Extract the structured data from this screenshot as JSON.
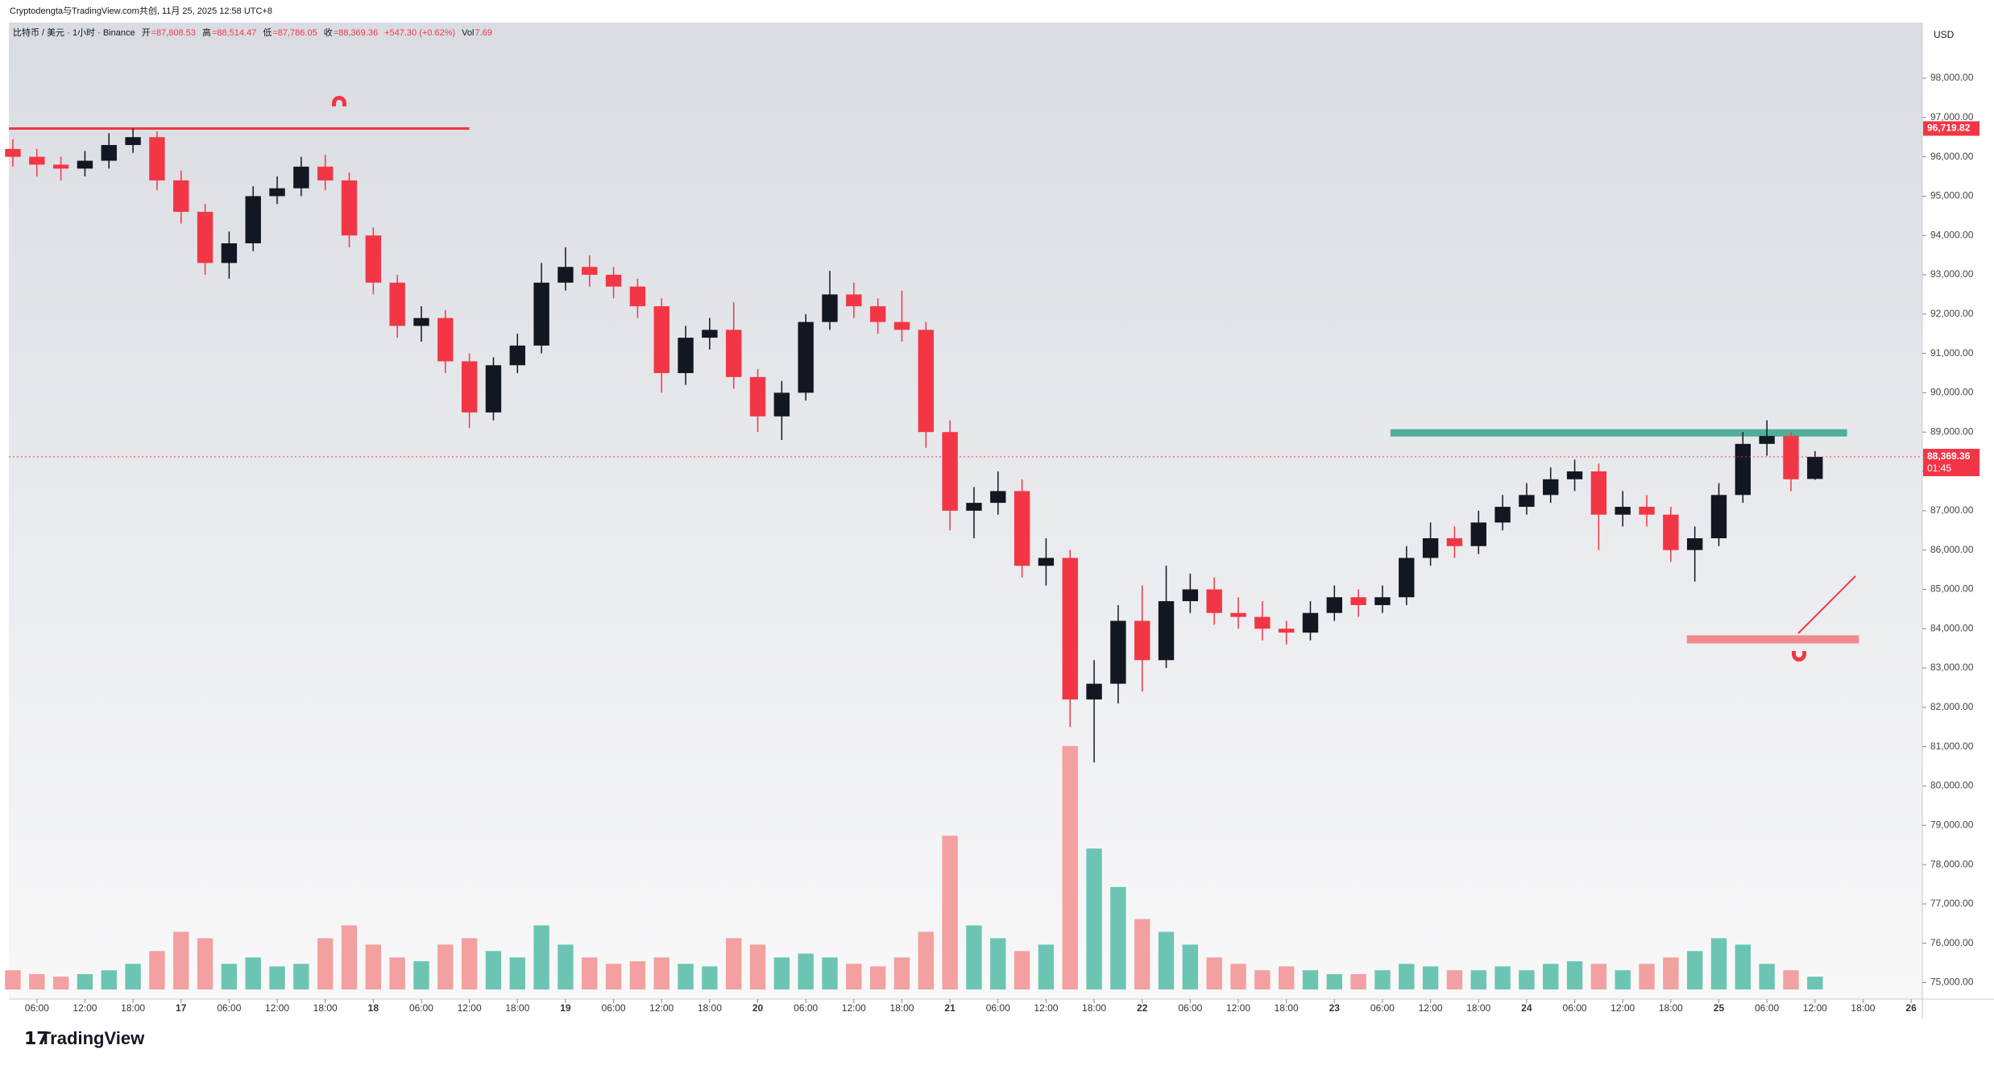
{
  "top_note": "Cryptodengta与TradingView.com共创, 11月 25, 2025 12:58 UTC+8",
  "brand": "TradingView",
  "chart_data": {
    "type": "candlestick",
    "header": {
      "symbol": "比特币 / 美元 · 1小时 · Binance",
      "open_label": "开",
      "open": "=87,808.53",
      "high_label": "高",
      "high": "=88,514.47",
      "low_label": "低",
      "low": "=87,786.05",
      "close_label": "收",
      "close": "=88,369.36",
      "change": "+547.30 (+0.62%)",
      "vol_label": "Vol",
      "vol": "7.69"
    },
    "currency": "USD",
    "x": [
      3,
      6,
      9,
      12,
      15,
      18,
      21,
      24,
      27,
      30,
      33,
      36,
      39,
      42,
      45,
      48,
      51,
      54,
      57,
      60,
      63,
      66,
      69,
      72,
      75,
      78,
      81,
      84,
      87,
      90,
      93,
      96,
      99,
      102,
      105,
      108,
      111,
      114,
      117,
      120,
      123,
      126,
      129,
      132,
      135,
      138,
      141,
      144,
      147,
      150,
      153,
      156,
      159,
      162,
      165,
      168,
      171,
      174,
      177,
      180,
      183,
      186,
      189,
      192,
      195,
      198,
      201,
      204,
      207,
      210,
      213,
      216,
      219,
      222,
      225,
      228
    ],
    "open": [
      96200,
      96000,
      95800,
      95700,
      95900,
      96300,
      96500,
      95400,
      94600,
      93300,
      93800,
      95000,
      95200,
      95750,
      95400,
      94000,
      92800,
      91700,
      91900,
      90800,
      89500,
      90700,
      91200,
      92800,
      93200,
      93000,
      92700,
      92200,
      90500,
      91400,
      91600,
      90400,
      89400,
      90000,
      91800,
      92500,
      92200,
      91800,
      91600,
      89000,
      87000,
      87200,
      87500,
      85600,
      85800,
      82200,
      82600,
      84200,
      83200,
      84700,
      85000,
      84400,
      84300,
      84000,
      83900,
      84400,
      84800,
      84600,
      84800,
      85800,
      86300,
      86100,
      86700,
      87100,
      87400,
      87800,
      88000,
      86900,
      87100,
      86900,
      86000,
      86300,
      87400,
      88700,
      88900,
      87808.53
    ],
    "high": [
      96450,
      96200,
      96000,
      96150,
      96600,
      96719.82,
      96650,
      95650,
      94800,
      94100,
      95250,
      95500,
      96000,
      96050,
      95600,
      94200,
      93000,
      92200,
      92100,
      91000,
      90900,
      91500,
      93300,
      93700,
      93500,
      93200,
      92900,
      92400,
      91700,
      91900,
      92300,
      90600,
      90300,
      92000,
      93100,
      92800,
      92400,
      92600,
      91800,
      89300,
      87600,
      88000,
      87800,
      86300,
      86000,
      83200,
      84600,
      85100,
      85600,
      85400,
      85300,
      84800,
      84700,
      84200,
      84700,
      85100,
      85000,
      85100,
      86100,
      86700,
      86600,
      87000,
      87400,
      87700,
      88100,
      88300,
      88200,
      87500,
      87400,
      87100,
      86600,
      87700,
      89000,
      89300,
      89000,
      88514.47
    ],
    "low": [
      95750,
      95500,
      95400,
      95500,
      95700,
      96100,
      95150,
      94300,
      93000,
      92900,
      93600,
      94800,
      95000,
      95150,
      93700,
      92500,
      91400,
      91300,
      90500,
      89100,
      89300,
      90500,
      91000,
      92600,
      92700,
      92400,
      91900,
      90000,
      90200,
      91100,
      90100,
      89000,
      88800,
      89800,
      91600,
      91900,
      91500,
      91300,
      88600,
      86500,
      86300,
      86900,
      85300,
      85100,
      81500,
      80600,
      82100,
      82400,
      83000,
      84400,
      84100,
      84000,
      83700,
      83600,
      83700,
      84200,
      84300,
      84400,
      84600,
      85600,
      85800,
      85900,
      86500,
      86900,
      87200,
      87500,
      86000,
      86600,
      86600,
      85700,
      85200,
      86100,
      87200,
      88400,
      87500,
      87786.05
    ],
    "close": [
      96000,
      95800,
      95700,
      95900,
      96300,
      96500,
      95400,
      94600,
      93300,
      93800,
      95000,
      95200,
      95750,
      95400,
      94000,
      92800,
      91700,
      91900,
      90800,
      89500,
      90700,
      91200,
      92800,
      93200,
      93000,
      92700,
      92200,
      90500,
      91400,
      91600,
      90400,
      89400,
      90000,
      91800,
      92500,
      92200,
      91800,
      91600,
      89000,
      87000,
      87200,
      87500,
      85600,
      85800,
      82200,
      82600,
      84200,
      83200,
      84700,
      85000,
      84400,
      84300,
      84000,
      83900,
      84400,
      84800,
      84600,
      84800,
      85800,
      86300,
      86100,
      86700,
      87100,
      87400,
      87800,
      88000,
      86900,
      87100,
      86900,
      86000,
      86300,
      87400,
      88700,
      88900,
      87800,
      88369.36
    ],
    "volume": [
      15,
      12,
      10,
      12,
      15,
      20,
      30,
      45,
      40,
      20,
      25,
      18,
      20,
      40,
      50,
      35,
      25,
      22,
      35,
      40,
      30,
      25,
      50,
      35,
      25,
      20,
      22,
      25,
      20,
      18,
      40,
      35,
      25,
      28,
      25,
      20,
      18,
      25,
      45,
      120,
      50,
      40,
      30,
      35,
      190,
      110,
      80,
      55,
      45,
      35,
      25,
      20,
      15,
      18,
      15,
      12,
      12,
      15,
      20,
      18,
      15,
      15,
      18,
      15,
      20,
      22,
      20,
      15,
      20,
      25,
      30,
      40,
      35,
      20,
      15,
      10
    ],
    "volume_lim": [
      0,
      200
    ],
    "up_color": "#131722",
    "down_color": "#f23645",
    "volume_up_color": "#6cc5b3",
    "volume_down_color": "#f3a0a0",
    "xlim": [
      2.5,
      241.4
    ],
    "ylim": [
      74580,
      99414
    ],
    "xticks": [
      {
        "value": 6,
        "label": "06:00"
      },
      {
        "value": 12,
        "label": "12:00"
      },
      {
        "value": 18,
        "label": "18:00"
      },
      {
        "value": 24,
        "label": "17"
      },
      {
        "value": 30,
        "label": "06:00"
      },
      {
        "value": 36,
        "label": "12:00"
      },
      {
        "value": 42,
        "label": "18:00"
      },
      {
        "value": 48,
        "label": "18"
      },
      {
        "value": 54,
        "label": "06:00"
      },
      {
        "value": 60,
        "label": "12:00"
      },
      {
        "value": 66,
        "label": "18:00"
      },
      {
        "value": 72,
        "label": "19"
      },
      {
        "value": 78,
        "label": "06:00"
      },
      {
        "value": 84,
        "label": "12:00"
      },
      {
        "value": 90,
        "label": "18:00"
      },
      {
        "value": 96,
        "label": "20"
      },
      {
        "value": 102,
        "label": "06:00"
      },
      {
        "value": 108,
        "label": "12:00"
      },
      {
        "value": 114,
        "label": "18:00"
      },
      {
        "value": 120,
        "label": "21"
      },
      {
        "value": 126,
        "label": "06:00"
      },
      {
        "value": 132,
        "label": "12:00"
      },
      {
        "value": 138,
        "label": "18:00"
      },
      {
        "value": 144,
        "label": "22"
      },
      {
        "value": 150,
        "label": "06:00"
      },
      {
        "value": 156,
        "label": "12:00"
      },
      {
        "value": 162,
        "label": "18:00"
      },
      {
        "value": 168,
        "label": "23"
      },
      {
        "value": 174,
        "label": "06:00"
      },
      {
        "value": 180,
        "label": "12:00"
      },
      {
        "value": 186,
        "label": "18:00"
      },
      {
        "value": 192,
        "label": "24"
      },
      {
        "value": 198,
        "label": "06:00"
      },
      {
        "value": 204,
        "label": "12:00"
      },
      {
        "value": 210,
        "label": "18:00"
      },
      {
        "value": 216,
        "label": "25"
      },
      {
        "value": 222,
        "label": "06:00"
      },
      {
        "value": 228,
        "label": "12:00"
      },
      {
        "value": 234,
        "label": "18:00"
      },
      {
        "value": 240,
        "label": "26"
      }
    ],
    "yticks": [
      {
        "value": 75000,
        "label": "75,000.00"
      },
      {
        "value": 76000,
        "label": "76,000.00"
      },
      {
        "value": 77000,
        "label": "77,000.00"
      },
      {
        "value": 78000,
        "label": "78,000.00"
      },
      {
        "value": 79000,
        "label": "79,000.00"
      },
      {
        "value": 80000,
        "label": "80,000.00"
      },
      {
        "value": 81000,
        "label": "81,000.00"
      },
      {
        "value": 82000,
        "label": "82,000.00"
      },
      {
        "value": 83000,
        "label": "83,000.00"
      },
      {
        "value": 84000,
        "label": "84,000.00"
      },
      {
        "value": 85000,
        "label": "85,000.00"
      },
      {
        "value": 86000,
        "label": "86,000.00"
      },
      {
        "value": 87000,
        "label": "87,000.00"
      },
      {
        "value": 88000,
        "label": "88,000.00"
      },
      {
        "value": 89000,
        "label": "89,000.00"
      },
      {
        "value": 90000,
        "label": "90,000.00"
      },
      {
        "value": 91000,
        "label": "91,000.00"
      },
      {
        "value": 92000,
        "label": "92,000.00"
      },
      {
        "value": 93000,
        "label": "93,000.00"
      },
      {
        "value": 94000,
        "label": "94,000.00"
      },
      {
        "value": 95000,
        "label": "95,000.00"
      },
      {
        "value": 96000,
        "label": "96,000.00"
      },
      {
        "value": 97000,
        "label": "97,000.00"
      },
      {
        "value": 98000,
        "label": "98,000.00"
      }
    ],
    "last_price": {
      "label": "88,369.36",
      "countdown": "01:45",
      "color": "#f23645"
    },
    "levels": [
      {
        "price": 96719.82,
        "label": "96,719.82",
        "x": [
          2.5,
          60
        ],
        "color": "#f23645",
        "width": 3
      },
      {
        "price": 88980,
        "x": [
          175,
          232
        ],
        "color": "#4fae9a",
        "width": 9
      },
      {
        "price": 83730,
        "x": [
          212,
          233.5
        ],
        "color": "#f08a8e",
        "width": 10
      }
    ]
  }
}
